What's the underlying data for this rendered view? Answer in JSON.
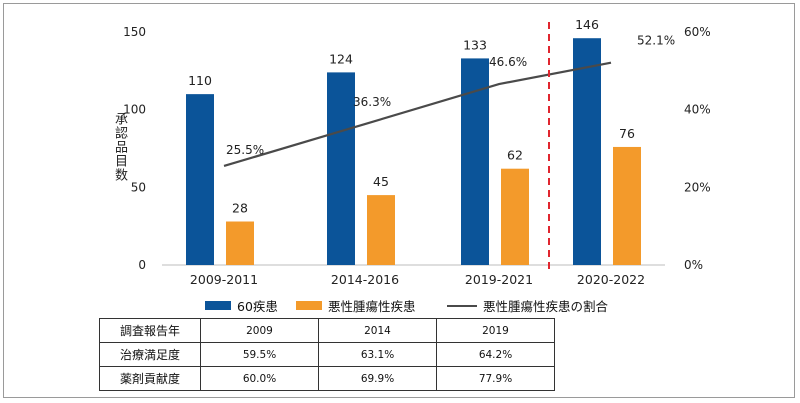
{
  "chart_data": {
    "type": "bar",
    "categories": [
      "2009-2011",
      "2014-2016",
      "2019-2021",
      "2020-2022"
    ],
    "series": [
      {
        "name": "60疾患",
        "values": [
          110,
          124,
          133,
          146
        ],
        "color": "#0b5499"
      },
      {
        "name": "悪性腫瘍性疾患",
        "values": [
          28,
          45,
          62,
          76
        ],
        "color": "#f39a2b"
      }
    ],
    "line_series": {
      "name": "悪性腫瘍性疾患の割合",
      "values": [
        25.5,
        36.3,
        46.6,
        52.1
      ],
      "labels": [
        "25.5%",
        "36.3%",
        "46.6%",
        "52.1%"
      ],
      "color": "#4a4a4a",
      "axis": "right"
    },
    "ylabel": "承認品目数",
    "ylim": [
      0,
      150
    ],
    "y_ticks": [
      "0",
      "50",
      "100",
      "150"
    ],
    "y2lim": [
      0,
      60
    ],
    "y2_ticks": [
      "0%",
      "20%",
      "40%",
      "60%"
    ],
    "divider": {
      "between_categories": [
        2,
        3
      ],
      "color": "#e0262f",
      "style": "dashed"
    }
  },
  "legend": {
    "bar1": "60疾患",
    "bar2": "悪性腫瘍性疾患",
    "line": "悪性腫瘍性疾患の割合"
  },
  "table": {
    "header": {
      "label": "調査報告年",
      "values": [
        "2009",
        "2014",
        "2019"
      ]
    },
    "rows": [
      {
        "label": "治療満足度",
        "values": [
          "59.5%",
          "63.1%",
          "64.2%"
        ]
      },
      {
        "label": "薬剤貢献度",
        "values": [
          "60.0%",
          "69.9%",
          "77.9%"
        ]
      }
    ]
  }
}
